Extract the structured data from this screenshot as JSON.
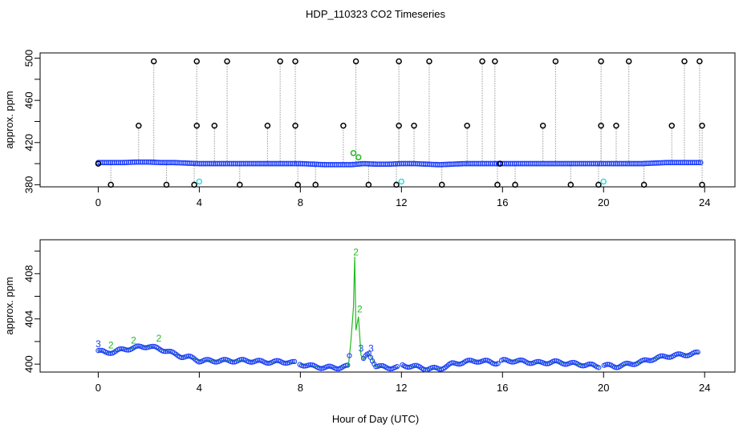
{
  "figure": {
    "title": "HDP_110323  CO2 Timeseries",
    "xlabel": "Hour of Day (UTC)"
  },
  "chart_data": [
    {
      "type": "scatter",
      "panel": "top",
      "ylabel": "approx. ppm",
      "xlim": [
        -2.3,
        25.2
      ],
      "ylim": [
        378.0,
        505.0
      ],
      "x_ticks": [
        0,
        4,
        8,
        12,
        16,
        20,
        24
      ],
      "x_tick_labels": [
        "0",
        "4",
        "8",
        "12",
        "16",
        "20",
        "24"
      ],
      "y_ticks": [
        380,
        420,
        460,
        500
      ],
      "y_tick_labels": [
        "380",
        "420",
        "460",
        "500"
      ],
      "y_minor_ticks": [
        400,
        440,
        480
      ],
      "baseline": {
        "name": "",
        "color": "#1f3fff",
        "x": [
          0.0,
          0.5,
          1.0,
          1.5,
          2.0,
          2.5,
          3.0,
          3.5,
          4.0,
          4.5,
          5.0,
          5.5,
          6.0,
          6.5,
          7.0,
          7.5,
          8.0,
          8.5,
          9.0,
          9.5,
          10.0,
          10.5,
          11.0,
          11.5,
          12.0,
          12.5,
          13.0,
          13.5,
          14.0,
          14.5,
          15.0,
          15.5,
          16.0,
          16.5,
          17.0,
          17.5,
          18.0,
          18.5,
          19.0,
          19.5,
          20.0,
          20.5,
          21.0,
          21.5,
          22.0,
          22.5,
          23.0,
          23.5,
          23.9
        ],
        "y": [
          401,
          401,
          401,
          401.5,
          401.5,
          401,
          401,
          400.5,
          400,
          400,
          400,
          400,
          400,
          400,
          400,
          400,
          400,
          399.5,
          399,
          399,
          399,
          400,
          399.5,
          399.5,
          400,
          400,
          399.5,
          399,
          399.5,
          400,
          400,
          400,
          400,
          400,
          400,
          400,
          400,
          400,
          400,
          400,
          400,
          400,
          400,
          400,
          400.5,
          401,
          401,
          401,
          401
        ]
      },
      "outliers": {
        "color": "#000000",
        "x": [
          0.0,
          0.5,
          1.6,
          2.2,
          2.7,
          3.8,
          3.9,
          3.9,
          4.6,
          5.1,
          5.6,
          6.7,
          7.2,
          7.8,
          7.8,
          7.9,
          8.6,
          9.7,
          10.2,
          10.7,
          11.8,
          11.9,
          11.9,
          12.5,
          13.1,
          13.6,
          14.6,
          15.2,
          15.7,
          15.8,
          15.9,
          16.5,
          17.6,
          18.1,
          18.7,
          19.8,
          19.9,
          19.9,
          20.5,
          21.0,
          21.6,
          22.7,
          23.2,
          23.8,
          23.9,
          23.9
        ],
        "y": [
          400,
          380,
          436,
          497,
          380,
          380,
          436,
          497,
          436,
          497,
          380,
          436,
          497,
          436,
          497,
          380,
          380,
          436,
          497,
          380,
          380,
          436,
          497,
          436,
          497,
          380,
          436,
          497,
          497,
          380,
          400,
          380,
          436,
          497,
          380,
          380,
          436,
          497,
          436,
          497,
          380,
          436,
          497,
          497,
          436,
          380
        ]
      },
      "cyan_points": {
        "color": "#33dddd",
        "x": [
          4.0,
          12.0,
          20.0
        ],
        "y": [
          383,
          383,
          383
        ]
      },
      "green_points": {
        "color": "#22bb22",
        "x": [
          10.1,
          10.3
        ],
        "y": [
          410,
          406
        ]
      }
    },
    {
      "type": "line",
      "panel": "bottom",
      "ylabel": "approx. ppm",
      "xlim": [
        -2.3,
        25.2
      ],
      "ylim": [
        399.3,
        411.0
      ],
      "x_ticks": [
        0,
        4,
        8,
        12,
        16,
        20,
        24
      ],
      "x_tick_labels": [
        "0",
        "4",
        "8",
        "12",
        "16",
        "20",
        "24"
      ],
      "y_ticks": [
        400,
        404,
        408
      ],
      "y_tick_labels": [
        "400",
        "404",
        "408"
      ],
      "y_minor_ticks": [
        402,
        406,
        410
      ],
      "series": [
        {
          "name": "",
          "color": "#22bb22",
          "marker_color": "#1f3fff",
          "x": [
            0.0,
            0.3,
            0.6,
            1.0,
            1.3,
            1.6,
            2.0,
            2.3,
            2.7,
            3.0,
            3.3,
            3.6,
            3.8,
            4.0,
            4.5,
            5.0,
            5.5,
            6.0,
            6.5,
            7.0,
            7.5,
            7.8,
            8.0,
            8.5,
            9.0,
            9.5,
            9.9,
            10.0,
            10.1,
            10.15,
            10.2,
            10.3,
            10.4,
            10.5,
            10.7,
            11.0,
            11.5,
            11.9,
            12.0,
            12.5,
            13.0,
            13.5,
            14.0,
            14.5,
            15.0,
            15.5,
            15.8,
            16.0,
            16.5,
            17.0,
            17.5,
            18.0,
            18.5,
            19.0,
            19.5,
            19.8,
            20.0,
            20.5,
            21.0,
            21.5,
            22.0,
            22.5,
            23.0,
            23.5,
            23.8
          ],
          "y": [
            401.2,
            401.0,
            401.1,
            401.3,
            401.4,
            401.5,
            401.6,
            401.4,
            401.2,
            400.9,
            400.7,
            400.6,
            400.5,
            400.3,
            400.3,
            400.3,
            400.3,
            400.3,
            400.2,
            400.2,
            400.2,
            400.1,
            400.0,
            399.8,
            399.7,
            399.7,
            399.8,
            402.0,
            405.0,
            409.5,
            403.0,
            404.2,
            400.8,
            400.4,
            401.0,
            399.8,
            399.7,
            399.7,
            399.9,
            399.8,
            399.6,
            399.6,
            400.0,
            400.2,
            400.3,
            400.2,
            400.1,
            400.3,
            400.3,
            400.2,
            400.1,
            400.2,
            400.1,
            400.0,
            399.9,
            399.8,
            399.9,
            399.8,
            400.0,
            400.2,
            400.5,
            400.7,
            400.8,
            400.9,
            401.0
          ]
        }
      ],
      "annotations": [
        {
          "text": "3",
          "x": 0.0,
          "y": 401.5,
          "color": "#1f3fff"
        },
        {
          "text": "2",
          "x": 0.5,
          "y": 401.4,
          "color": "#22bb22"
        },
        {
          "text": "2",
          "x": 1.4,
          "y": 401.8,
          "color": "#22bb22"
        },
        {
          "text": "2",
          "x": 2.4,
          "y": 402.0,
          "color": "#22bb22"
        },
        {
          "text": "2",
          "x": 10.2,
          "y": 409.6,
          "color": "#22bb22"
        },
        {
          "text": "2",
          "x": 10.35,
          "y": 404.6,
          "color": "#22bb22"
        },
        {
          "text": "3",
          "x": 10.4,
          "y": 401.1,
          "color": "#1f3fff"
        },
        {
          "text": "3",
          "x": 10.8,
          "y": 401.1,
          "color": "#1f3fff"
        }
      ]
    }
  ]
}
